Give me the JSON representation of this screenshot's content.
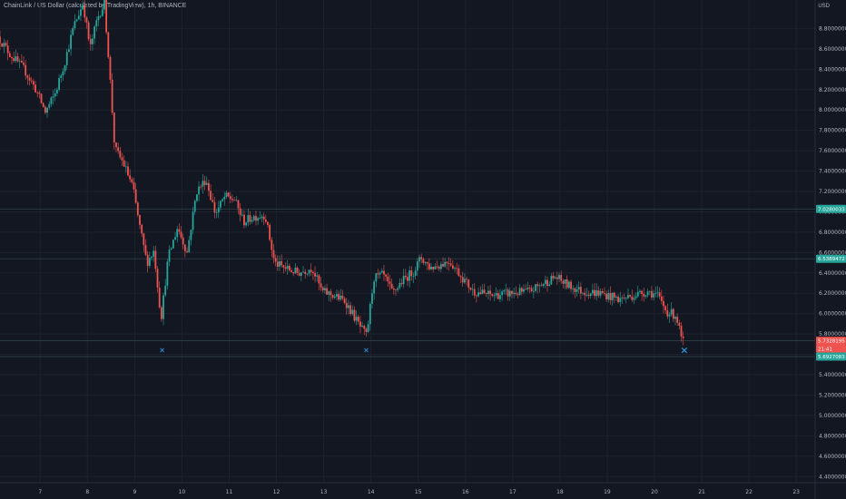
{
  "header": {
    "title": "ChainLink / US Dollar (calculated by TradingView), 1h, BINANCE",
    "currency": "USD"
  },
  "colors": {
    "background": "#131722",
    "grid": "#1e222d",
    "up": "#26a69a",
    "down": "#ef5350",
    "marker": "#2f8fd8",
    "level_line": "#37474f"
  },
  "chart_data": {
    "type": "candlestick",
    "y_axis_ticks": [
      "8.8000000",
      "8.6000000",
      "8.4000000",
      "8.2000000",
      "8.0000000",
      "7.8000000",
      "7.6000000",
      "7.4000000",
      "7.2000000",
      "7.0000000",
      "6.8000000",
      "6.6000000",
      "6.4000000",
      "6.2000000",
      "6.0000000",
      "5.8000000",
      "5.6000000",
      "5.4000000",
      "5.2000000",
      "5.0000000",
      "4.8000000",
      "4.6000000",
      "4.4000000"
    ],
    "x_axis_ticks": [
      "7",
      "8",
      "9",
      "10",
      "11",
      "12",
      "13",
      "14",
      "15",
      "16",
      "17",
      "18",
      "19",
      "20",
      "21",
      "22",
      "23"
    ],
    "ylim": [
      4.34,
      9.08
    ],
    "xlim": [
      6.15,
      23.4
    ],
    "price_badges": [
      {
        "label": "7.0280033",
        "value": 7.028,
        "color": "#26a69a"
      },
      {
        "label": "6.5389472",
        "value": 6.539,
        "color": "#26a69a"
      },
      {
        "label": "5.7328195",
        "value": 5.733,
        "color": "#ef5350"
      },
      {
        "label": "21:41",
        "value": 5.655,
        "color": "#ef5350"
      },
      {
        "label": "5.6927083",
        "value": 5.5787,
        "color": "#26a69a"
      }
    ],
    "markers": [
      {
        "x": 9.58,
        "y": 5.645,
        "label": "×"
      },
      {
        "x": 13.9,
        "y": 5.645,
        "label": "×"
      },
      {
        "x": 20.63,
        "y": 5.635,
        "label": "×"
      }
    ],
    "price_path": [
      [
        6.15,
        8.72
      ],
      [
        6.4,
        8.55
      ],
      [
        6.7,
        8.4
      ],
      [
        6.95,
        8.2
      ],
      [
        7.15,
        7.98
      ],
      [
        7.35,
        8.15
      ],
      [
        7.55,
        8.45
      ],
      [
        7.75,
        8.82
      ],
      [
        7.95,
        9.05
      ],
      [
        8.1,
        8.6
      ],
      [
        8.25,
        8.9
      ],
      [
        8.4,
        9.05
      ],
      [
        8.5,
        8.45
      ],
      [
        8.62,
        7.62
      ],
      [
        8.8,
        7.48
      ],
      [
        9.0,
        7.25
      ],
      [
        9.15,
        6.85
      ],
      [
        9.3,
        6.5
      ],
      [
        9.45,
        6.62
      ],
      [
        9.6,
        5.95
      ],
      [
        9.75,
        6.55
      ],
      [
        9.95,
        6.85
      ],
      [
        10.15,
        6.6
      ],
      [
        10.35,
        7.2
      ],
      [
        10.55,
        7.32
      ],
      [
        10.75,
        6.98
      ],
      [
        10.95,
        7.15
      ],
      [
        11.15,
        7.12
      ],
      [
        11.35,
        6.9
      ],
      [
        11.55,
        6.95
      ],
      [
        11.8,
        6.97
      ],
      [
        12.0,
        6.5
      ],
      [
        12.2,
        6.45
      ],
      [
        12.5,
        6.4
      ],
      [
        12.8,
        6.45
      ],
      [
        13.0,
        6.22
      ],
      [
        13.25,
        6.18
      ],
      [
        13.5,
        6.12
      ],
      [
        13.8,
        5.88
      ],
      [
        13.95,
        5.78
      ],
      [
        14.1,
        6.35
      ],
      [
        14.3,
        6.38
      ],
      [
        14.5,
        6.2
      ],
      [
        14.7,
        6.32
      ],
      [
        14.95,
        6.42
      ],
      [
        15.1,
        6.55
      ],
      [
        15.3,
        6.45
      ],
      [
        15.5,
        6.48
      ],
      [
        15.7,
        6.52
      ],
      [
        15.9,
        6.4
      ],
      [
        16.2,
        6.22
      ],
      [
        16.6,
        6.18
      ],
      [
        17.0,
        6.2
      ],
      [
        17.4,
        6.22
      ],
      [
        17.7,
        6.3
      ],
      [
        17.95,
        6.36
      ],
      [
        18.2,
        6.28
      ],
      [
        18.5,
        6.22
      ],
      [
        18.9,
        6.2
      ],
      [
        19.3,
        6.14
      ],
      [
        19.6,
        6.18
      ],
      [
        19.9,
        6.22
      ],
      [
        20.1,
        6.18
      ],
      [
        20.3,
        6.02
      ],
      [
        20.5,
        5.98
      ],
      [
        20.63,
        5.72
      ]
    ]
  }
}
